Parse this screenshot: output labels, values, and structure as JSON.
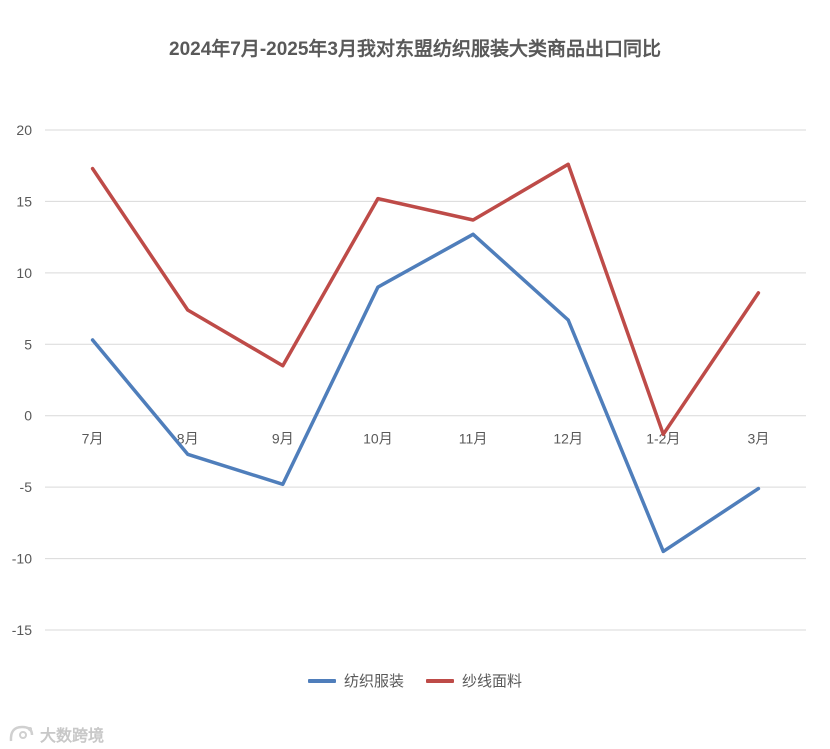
{
  "chart_data": {
    "type": "line",
    "title": "2024年7月-2025年3月我对东盟纺织服装大类商品出口同比",
    "categories": [
      "7月",
      "8月",
      "9月",
      "10月",
      "11月",
      "12月",
      "1-2月",
      "3月"
    ],
    "series": [
      {
        "name": "纺织服装",
        "color": "#4F7EBB",
        "values": [
          5.3,
          -2.7,
          -4.8,
          9.0,
          12.7,
          6.7,
          -9.5,
          -5.1
        ]
      },
      {
        "name": "纱线面料",
        "color": "#BE4B48",
        "values": [
          17.3,
          7.4,
          3.5,
          15.2,
          13.7,
          17.6,
          -1.3,
          8.6
        ]
      }
    ],
    "ylim": [
      -15,
      20
    ],
    "yticks": [
      20,
      15,
      10,
      5,
      0,
      -5,
      -10,
      -15
    ],
    "grid": true,
    "legend_position": "bottom"
  },
  "watermark": {
    "text": "大数跨境"
  }
}
